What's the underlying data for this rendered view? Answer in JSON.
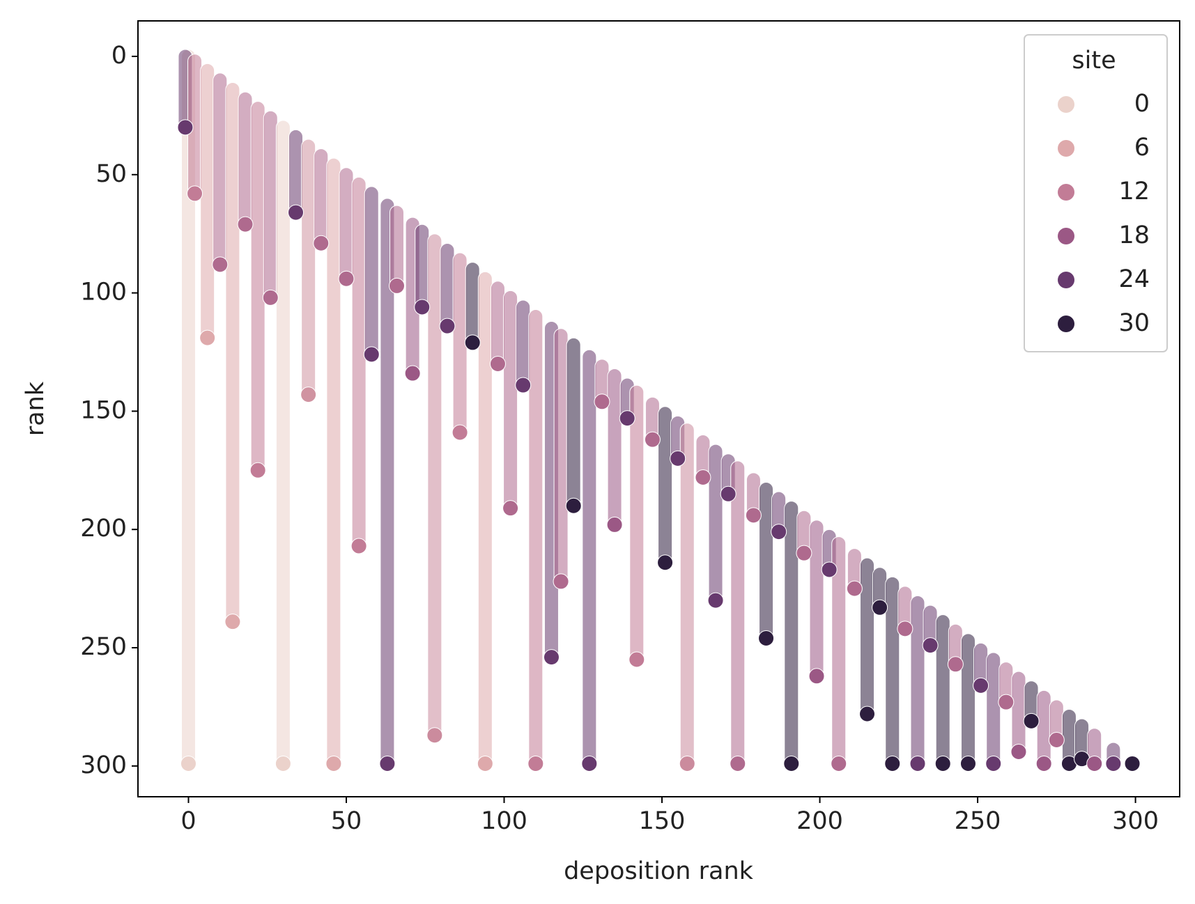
{
  "chart_data": {
    "type": "scatter",
    "x_label": "deposition rank",
    "y_label": "rank",
    "xlim": [
      -16,
      314
    ],
    "ylim": [
      313,
      -15
    ],
    "xticks": [
      0,
      50,
      100,
      150,
      200,
      250,
      300
    ],
    "yticks": [
      0,
      50,
      100,
      150,
      200,
      250,
      300
    ],
    "legend": {
      "title": "site",
      "position": "upper right",
      "entries": [
        {
          "name": "0",
          "color": "#ebd2cb"
        },
        {
          "name": "6",
          "color": "#dea9ab"
        },
        {
          "name": "12",
          "color": "#c27c96"
        },
        {
          "name": "18",
          "color": "#9b5885"
        },
        {
          "name": "24",
          "color": "#673a6e"
        },
        {
          "name": "30",
          "color": "#2d1e3e"
        }
      ]
    },
    "site_levels": [
      0,
      6,
      12,
      18,
      24,
      30
    ],
    "x": [
      0,
      -1,
      2,
      6,
      10,
      14,
      18,
      22,
      26,
      30,
      34,
      38,
      42,
      46,
      50,
      54,
      58,
      63,
      66,
      71,
      74,
      78,
      82,
      86,
      90,
      94,
      98,
      102,
      106,
      110,
      115,
      118,
      122,
      127,
      131,
      135,
      139,
      142,
      147,
      151,
      155,
      158,
      163,
      167,
      171,
      174,
      179,
      183,
      187,
      191,
      195,
      199,
      203,
      206,
      211,
      215,
      219,
      223,
      227,
      231,
      235,
      239,
      243,
      247,
      251,
      255,
      259,
      263,
      267,
      271,
      275,
      279,
      283,
      287,
      293,
      299
    ],
    "top": [
      0,
      0,
      2,
      6,
      10,
      14,
      18,
      22,
      26,
      30,
      34,
      38,
      42,
      46,
      50,
      54,
      58,
      63,
      66,
      71,
      74,
      78,
      82,
      86,
      90,
      94,
      98,
      102,
      106,
      110,
      115,
      118,
      122,
      127,
      131,
      135,
      139,
      142,
      147,
      151,
      155,
      158,
      163,
      167,
      171,
      174,
      179,
      183,
      187,
      191,
      195,
      199,
      203,
      206,
      211,
      215,
      219,
      223,
      227,
      231,
      235,
      239,
      243,
      247,
      251,
      255,
      259,
      263,
      267,
      271,
      275,
      279,
      283,
      287,
      293,
      299
    ],
    "values": [
      299,
      30,
      58,
      119,
      88,
      239,
      71,
      175,
      102,
      299,
      66,
      143,
      79,
      299,
      94,
      207,
      126,
      299,
      97,
      134,
      106,
      287,
      114,
      159,
      121,
      299,
      130,
      191,
      139,
      299,
      254,
      222,
      190,
      299,
      146,
      198,
      153,
      255,
      162,
      214,
      170,
      299,
      178,
      230,
      185,
      299,
      194,
      246,
      201,
      299,
      210,
      262,
      217,
      299,
      225,
      278,
      233,
      299,
      242,
      299,
      249,
      299,
      257,
      299,
      266,
      299,
      273,
      294,
      281,
      299,
      289,
      299,
      297,
      299,
      299,
      299
    ],
    "site": [
      0,
      24,
      12,
      6,
      15,
      6,
      15,
      12,
      15,
      0,
      24,
      9,
      15,
      6,
      15,
      12,
      24,
      24,
      15,
      18,
      24,
      10,
      24,
      12,
      30,
      6,
      15,
      15,
      24,
      12,
      24,
      15,
      30,
      24,
      15,
      18,
      24,
      12,
      15,
      30,
      24,
      10,
      15,
      24,
      24,
      15,
      15,
      30,
      24,
      30,
      15,
      18,
      24,
      15,
      15,
      30,
      30,
      30,
      15,
      24,
      24,
      30,
      15,
      30,
      24,
      24,
      15,
      18,
      30,
      18,
      15,
      30,
      30,
      18,
      24,
      30
    ]
  }
}
